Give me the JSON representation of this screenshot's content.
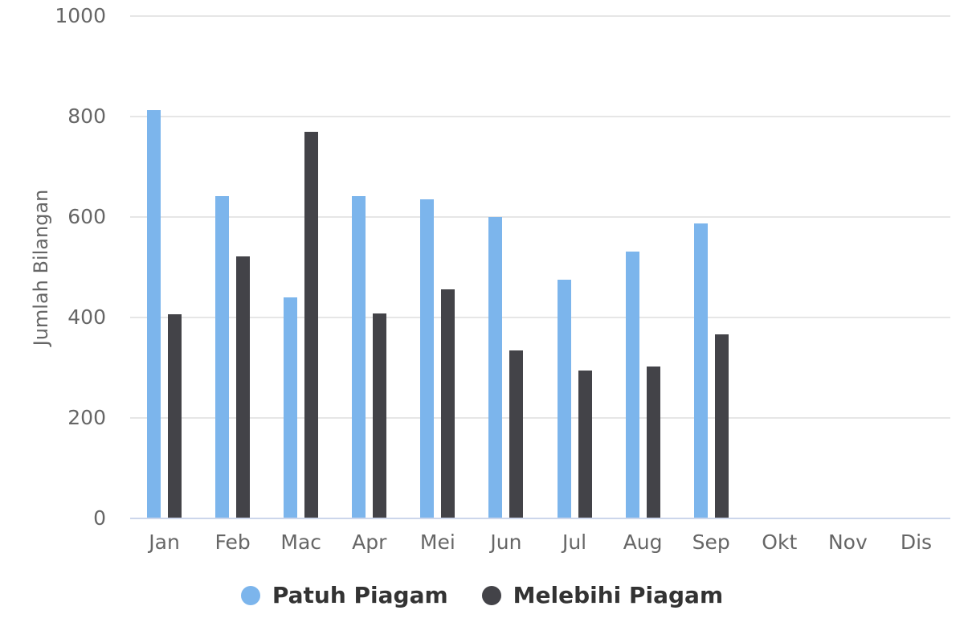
{
  "chart_data": {
    "type": "bar",
    "title": "",
    "xlabel": "",
    "ylabel": "Jumlah Bilangan",
    "ylim": [
      0,
      1000
    ],
    "ytick_step": 200,
    "grid": true,
    "legend_position": "bottom-center",
    "categories": [
      "Jan",
      "Feb",
      "Mac",
      "Apr",
      "Mei",
      "Jun",
      "Jul",
      "Aug",
      "Sep",
      "Okt",
      "Nov",
      "Dis"
    ],
    "series": [
      {
        "name": "Patuh Piagam",
        "color": "#7cb5ec",
        "values": [
          813,
          642,
          440,
          642,
          635,
          600,
          475,
          531,
          587,
          0,
          0,
          0
        ]
      },
      {
        "name": "Melebihi Piagam",
        "color": "#434348",
        "values": [
          406,
          521,
          769,
          408,
          456,
          334,
          294,
          302,
          367,
          0,
          0,
          0
        ]
      }
    ]
  },
  "colors": {
    "background": "#ffffff",
    "gridline": "#e6e6e6",
    "axis_line": "#ccd6eb",
    "tick_label": "#666666",
    "axis_title": "#666666",
    "legend_text": "#333333"
  }
}
